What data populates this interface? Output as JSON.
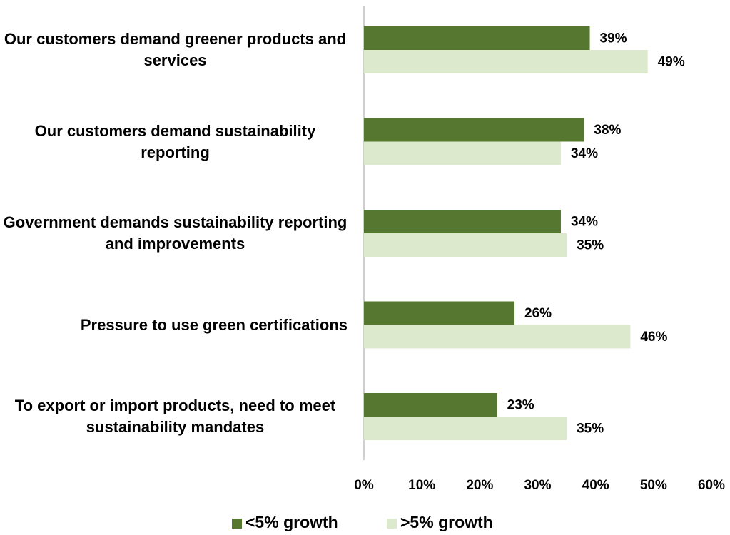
{
  "chart_data": {
    "type": "barh",
    "categories": [
      "Our customers demand greener products and services",
      "Our customers demand sustainability reporting",
      "Government demands sustainability reporting and improvements",
      "Pressure to use green certifications",
      "To export or import products, need to meet sustainability mandates"
    ],
    "series": [
      {
        "name": "<5% growth",
        "color": "#56772f",
        "values": [
          39,
          38,
          34,
          26,
          23
        ],
        "value_labels": [
          "39%",
          "38%",
          "34%",
          "26%",
          "23%"
        ]
      },
      {
        "name": ">5% growth",
        "color": "#dce9cc",
        "values": [
          49,
          34,
          35,
          46,
          35
        ],
        "value_labels": [
          "49%",
          "34%",
          "35%",
          "46%",
          "35%"
        ]
      }
    ],
    "xlim": [
      0,
      60
    ],
    "xticks": [
      {
        "value": 0,
        "label": "0%"
      },
      {
        "value": 10,
        "label": "10%"
      },
      {
        "value": 20,
        "label": "20%"
      },
      {
        "value": 30,
        "label": "30%"
      },
      {
        "value": 40,
        "label": "40%"
      },
      {
        "value": 50,
        "label": "50%"
      },
      {
        "value": 60,
        "label": "60%"
      }
    ],
    "legend": "bottom"
  }
}
